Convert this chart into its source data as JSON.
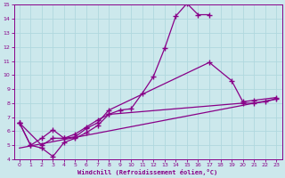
{
  "xlabel": "Windchill (Refroidissement éolien,°C)",
  "xlim": [
    -0.5,
    23.5
  ],
  "ylim": [
    4,
    15
  ],
  "xticks": [
    0,
    1,
    2,
    3,
    4,
    5,
    6,
    7,
    8,
    9,
    10,
    11,
    12,
    13,
    14,
    15,
    16,
    17,
    18,
    19,
    20,
    21,
    22,
    23
  ],
  "yticks": [
    4,
    5,
    6,
    7,
    8,
    9,
    10,
    11,
    12,
    13,
    14,
    15
  ],
  "background_color": "#cce8ec",
  "grid_color": "#b0d8de",
  "line_color": "#880088",
  "line1_x": [
    0,
    1,
    2,
    3,
    4,
    5,
    6,
    7,
    8,
    9,
    10,
    11,
    12,
    13,
    14,
    15,
    16,
    17
  ],
  "line1_y": [
    6.6,
    5.0,
    4.8,
    4.2,
    5.2,
    5.5,
    5.9,
    6.4,
    7.2,
    7.5,
    7.6,
    8.7,
    9.9,
    11.9,
    14.2,
    15.1,
    14.3,
    14.3
  ],
  "line2_x": [
    0,
    1,
    2,
    3,
    4,
    5,
    6,
    7,
    8,
    17,
    19,
    20,
    21,
    23
  ],
  "line2_y": [
    6.6,
    5.0,
    5.5,
    6.1,
    5.5,
    5.6,
    6.2,
    6.6,
    7.5,
    10.9,
    9.6,
    8.1,
    8.2,
    8.4
  ],
  "line3_x": [
    0,
    2,
    3,
    4,
    5,
    6,
    7,
    8,
    20,
    21,
    22,
    23
  ],
  "line3_y": [
    6.6,
    5.0,
    5.5,
    5.5,
    5.8,
    6.3,
    6.8,
    7.2,
    8.0,
    8.0,
    8.1,
    8.3
  ],
  "line4_x": [
    0,
    23
  ],
  "line4_y": [
    4.8,
    8.3
  ]
}
